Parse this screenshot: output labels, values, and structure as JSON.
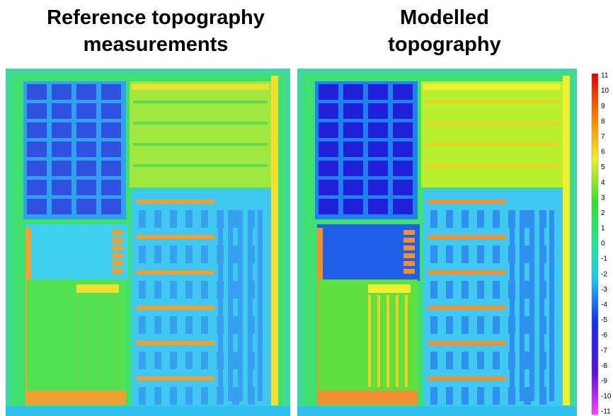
{
  "titles": {
    "left": [
      "Reference topography",
      "measurements"
    ],
    "right": [
      "Modelled",
      "topography"
    ]
  },
  "colorbar": {
    "ticks": [
      11,
      10,
      9,
      8,
      7,
      6,
      5,
      4,
      3,
      2,
      1,
      0,
      -1,
      -2,
      -3,
      -4,
      -5,
      -6,
      -7,
      -8,
      -9,
      -10,
      -11
    ]
  }
}
